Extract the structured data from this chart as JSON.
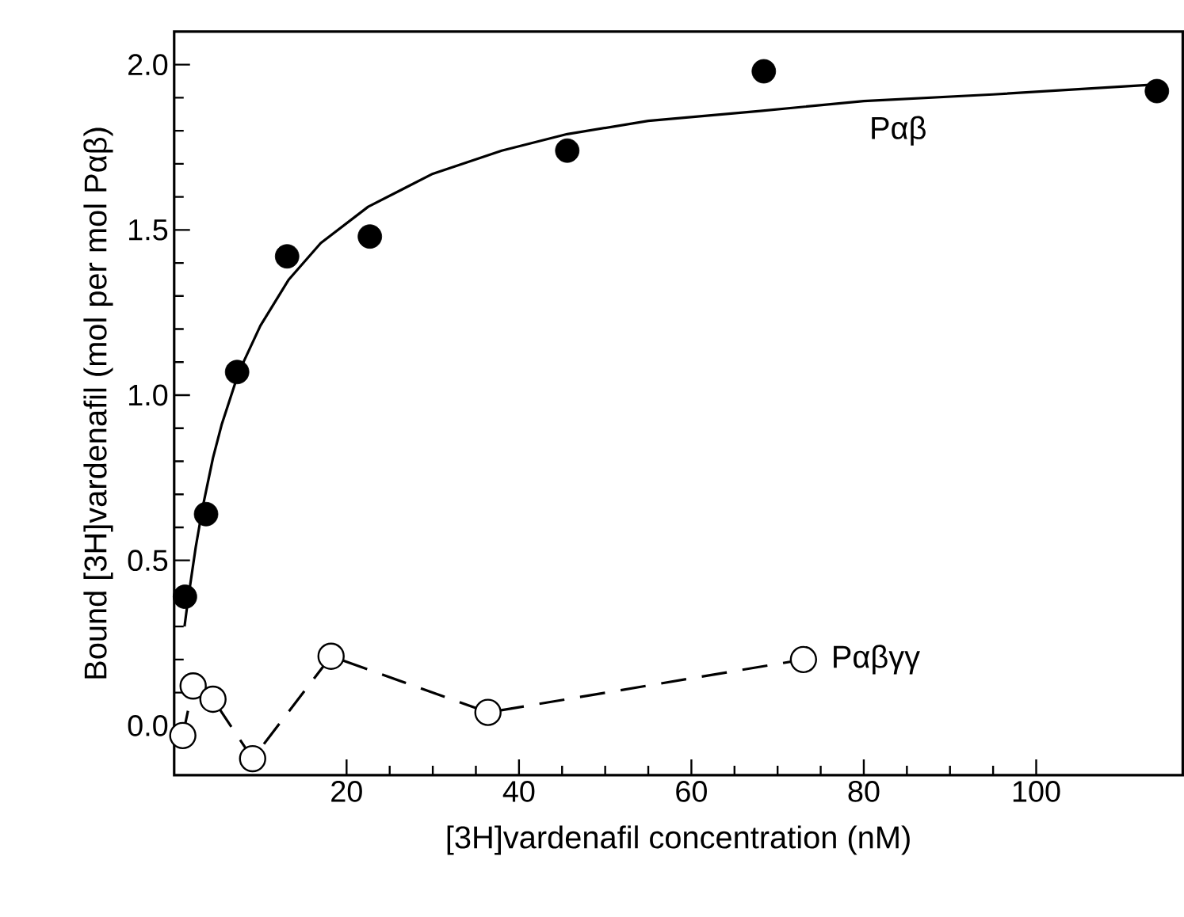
{
  "chart_data": {
    "type": "scatter",
    "xlabel": "[3H]vardenafil concentration (nM)",
    "ylabel": "Bound [3H]vardenafil (mol per mol Pαβ)",
    "xlim": [
      0,
      117
    ],
    "ylim": [
      -0.15,
      2.1
    ],
    "xticks": [
      20,
      40,
      60,
      80,
      100
    ],
    "yticks": [
      {
        "value": 0,
        "label": "0.0"
      },
      {
        "value": 0.5,
        "label": "0.5"
      },
      {
        "value": 1,
        "label": "1.0"
      },
      {
        "value": 1.5,
        "label": "1.5"
      },
      {
        "value": 2,
        "label": "2.0"
      }
    ],
    "grid": false,
    "legend": false,
    "series": [
      {
        "color": "#000000",
        "marker": "circle",
        "x": [
          1.25,
          3.7,
          7.3,
          13.1,
          22.7,
          45.6,
          68.4,
          114
        ],
        "values": [
          0.39,
          0.64,
          1.07,
          1.42,
          1.48,
          1.74,
          1.98,
          1.92
        ]
      },
      {
        "name": "Pαβ",
        "type": "line",
        "color": "#000000",
        "marker": "none",
        "line_style": "solid",
        "x": [
          1.2,
          1.6,
          2.5,
          3.3,
          4.5,
          5.5,
          7.5,
          10,
          13.3,
          17,
          22.5,
          30,
          38,
          45.6,
          55,
          68,
          80,
          95,
          114
        ],
        "values": [
          0.3,
          0.38,
          0.54,
          0.66,
          0.81,
          0.91,
          1.07,
          1.21,
          1.35,
          1.46,
          1.57,
          1.67,
          1.74,
          1.79,
          1.83,
          1.86,
          1.89,
          1.91,
          1.94
        ]
      },
      {
        "name": "Pαβγγ",
        "type": "line",
        "color": "#000000",
        "marker": "circle",
        "line_style": "dashed",
        "x": [
          1.0,
          2.2,
          4.5,
          9.1,
          18.2,
          36.4,
          73.0
        ],
        "values": [
          -0.03,
          0.12,
          0.08,
          -0.1,
          0.21,
          0.04,
          0.2
        ]
      }
    ]
  }
}
